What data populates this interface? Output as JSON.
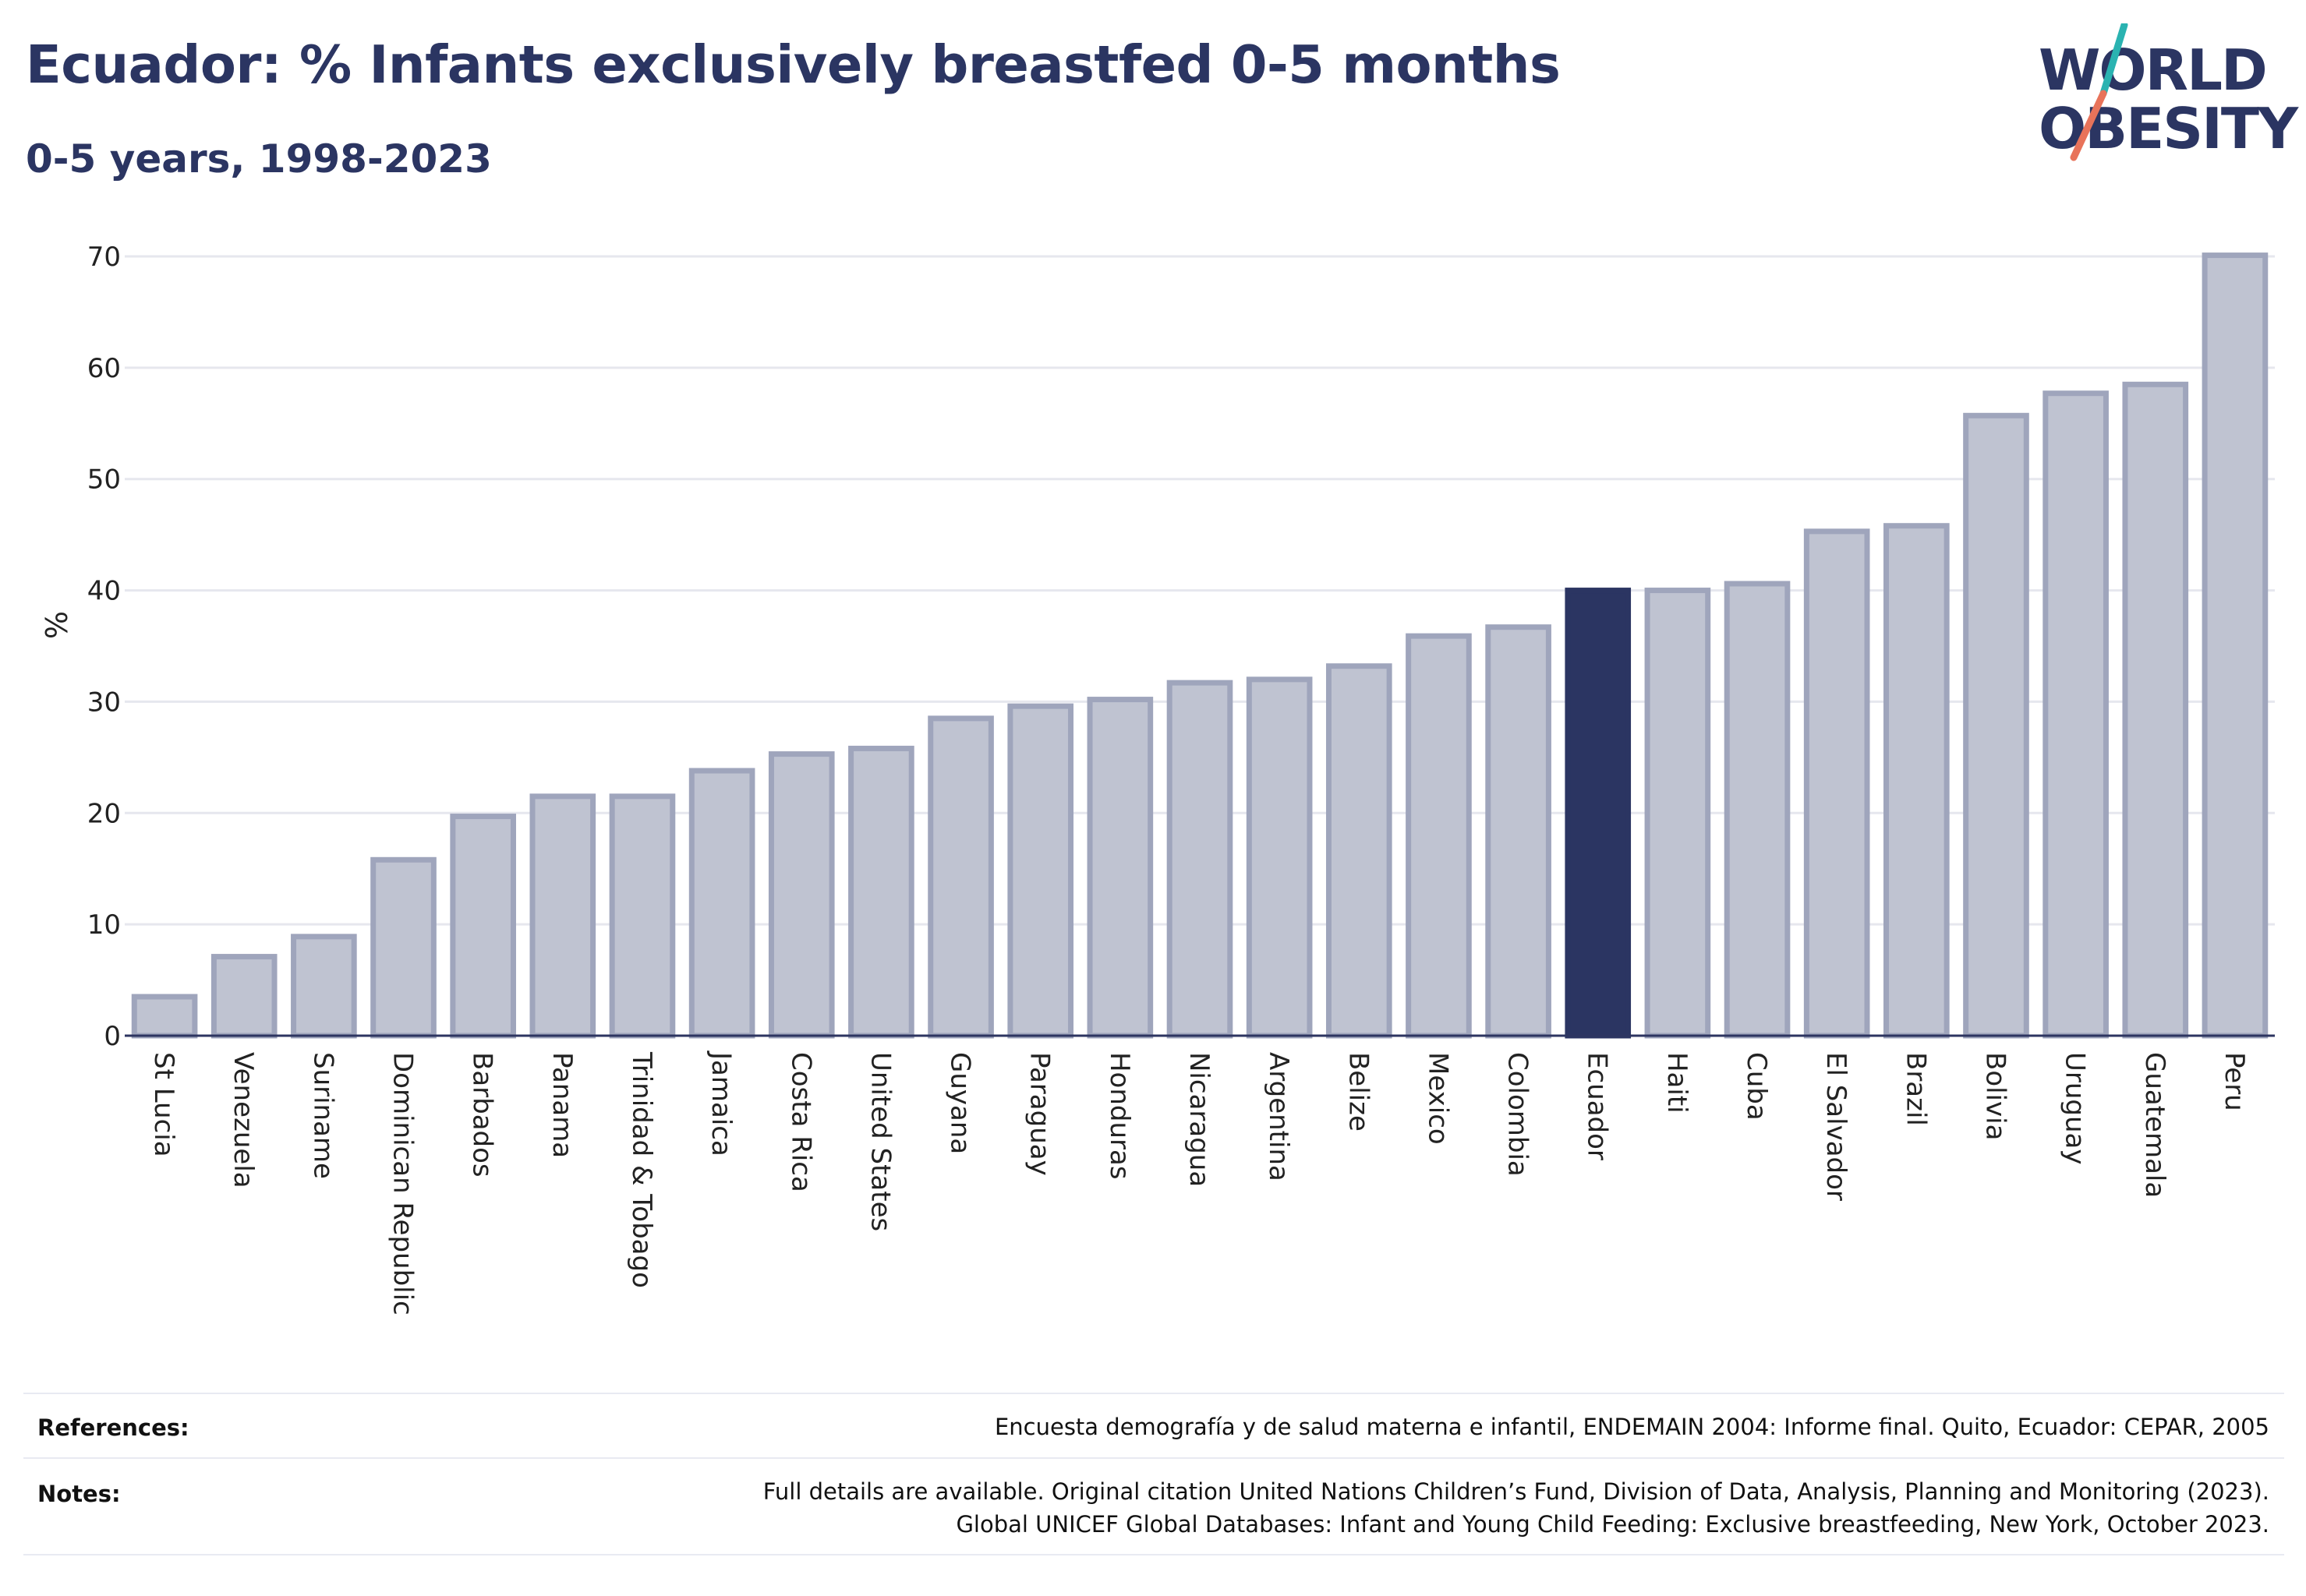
{
  "header": {
    "title": "Ecuador: % Infants exclusively breastfed 0-5 months",
    "subtitle": "0-5 years, 1998-2023"
  },
  "logo": {
    "line1": "W RLD",
    "line2": "BESITY",
    "o_letter": "O",
    "accent_teal": "#2ab3b1",
    "accent_coral": "#e8735a",
    "text_color": "#2b3562"
  },
  "chart_data": {
    "type": "bar",
    "ylabel": "%",
    "xlabel": "",
    "ylim": [
      0,
      70
    ],
    "yticks": [
      0,
      10,
      20,
      30,
      40,
      50,
      60,
      70
    ],
    "grid": true,
    "highlight": "Ecuador",
    "colors": {
      "bar": "#bfc3d1",
      "bar_border": "#9fa5bc",
      "highlight": "#2b3562",
      "grid": "#e6e7ee",
      "axis": "#2d3561"
    },
    "categories": [
      "St Lucia",
      "Venezuela",
      "Suriname",
      "Dominican Republic",
      "Barbados",
      "Panama",
      "Trinidad & Tobago",
      "Jamaica",
      "Costa Rica",
      "United States",
      "Guyana",
      "Paraguay",
      "Honduras",
      "Nicaragua",
      "Argentina",
      "Belize",
      "Mexico",
      "Colombia",
      "Ecuador",
      "Haiti",
      "Cuba",
      "El Salvador",
      "Brazil",
      "Bolivia",
      "Uruguay",
      "Guatemala",
      "Peru"
    ],
    "values": [
      3.5,
      7.1,
      8.9,
      15.8,
      19.7,
      21.5,
      21.5,
      23.8,
      25.3,
      25.8,
      28.5,
      29.6,
      30.2,
      31.7,
      32.0,
      33.2,
      35.9,
      36.7,
      40.0,
      40.0,
      40.6,
      45.3,
      45.8,
      55.7,
      57.7,
      58.5,
      70.1
    ]
  },
  "footer": {
    "references_label": "References:",
    "references_text": "Encuesta demografía y de salud materna e infantil, ENDEMAIN 2004: Informe final. Quito, Ecuador: CEPAR, 2005",
    "notes_label": "Notes:",
    "notes_line1": "Full details are available. Original citation United Nations Children’s Fund, Division of Data, Analysis, Planning and Monitoring (2023).",
    "notes_line2": "Global UNICEF Global Databases: Infant and Young Child Feeding: Exclusive breastfeeding, New York, October 2023."
  }
}
